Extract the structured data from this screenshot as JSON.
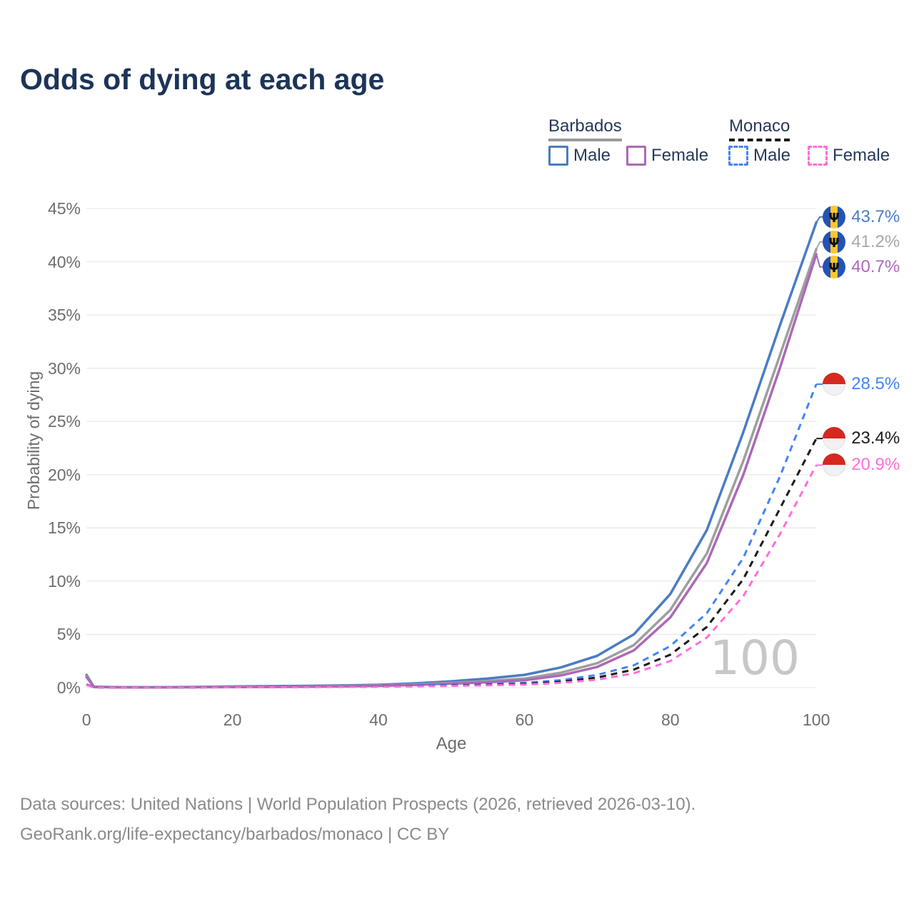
{
  "title": "Odds of dying at each age",
  "watermark_age": "100",
  "legend": {
    "groups": [
      {
        "label": "Barbados",
        "underline_style": "solid",
        "underline_color": "#9a9a9a",
        "items": [
          {
            "label": "Male",
            "color": "#4a7cc2",
            "dash": false
          },
          {
            "label": "Female",
            "color": "#ad68b8",
            "dash": false
          }
        ]
      },
      {
        "label": "Monaco",
        "underline_style": "dashed",
        "underline_color": "#1a1a1a",
        "items": [
          {
            "label": "Male",
            "color": "#4285f4",
            "dash": true
          },
          {
            "label": "Female",
            "color": "#ff6edb",
            "dash": true
          }
        ]
      }
    ]
  },
  "axes": {
    "y_title": "Probability of dying",
    "x_title": "Age",
    "y_ticks": [
      {
        "label": "45%",
        "value": 45
      },
      {
        "label": "40%",
        "value": 40
      },
      {
        "label": "35%",
        "value": 35
      },
      {
        "label": "30%",
        "value": 30
      },
      {
        "label": "25%",
        "value": 25
      },
      {
        "label": "20%",
        "value": 20
      },
      {
        "label": "15%",
        "value": 15
      },
      {
        "label": "10%",
        "value": 10
      },
      {
        "label": "5%",
        "value": 5
      },
      {
        "label": "0%",
        "value": 0
      }
    ],
    "x_ticks": [
      {
        "label": "0",
        "value": 0
      },
      {
        "label": "20",
        "value": 20
      },
      {
        "label": "40",
        "value": 40
      },
      {
        "label": "60",
        "value": 60
      },
      {
        "label": "80",
        "value": 80
      },
      {
        "label": "100",
        "value": 100
      }
    ]
  },
  "end_labels": [
    {
      "country": "Barbados",
      "series": "Male",
      "flag": "barbados",
      "label": "43.7%",
      "value": 43.7,
      "color": "#4a7cc2"
    },
    {
      "country": "Barbados",
      "series": "Both sexes",
      "flag": "barbados",
      "label": "41.2%",
      "value": 41.2,
      "color": "#a8a8a8"
    },
    {
      "country": "Barbados",
      "series": "Female",
      "flag": "barbados",
      "label": "40.7%",
      "value": 40.7,
      "color": "#ad68b8"
    },
    {
      "country": "Monaco",
      "series": "Male",
      "flag": "monaco",
      "label": "28.5%",
      "value": 28.5,
      "color": "#4285f4"
    },
    {
      "country": "Monaco",
      "series": "Both sexes",
      "flag": "monaco",
      "label": "23.4%",
      "value": 23.4,
      "color": "#1a1a1a"
    },
    {
      "country": "Monaco",
      "series": "Female",
      "flag": "monaco",
      "label": "20.9%",
      "value": 20.9,
      "color": "#ff6edb"
    }
  ],
  "footer": {
    "line1": "Data sources: United Nations | World Population Prospects (2026, retrieved 2026-03-10).",
    "line2": "GeoRank.org/life-expectancy/barbados/monaco | CC BY"
  },
  "chart_data": {
    "type": "line",
    "title": "Odds of dying at each age",
    "xlabel": "Age",
    "ylabel": "Probability of dying",
    "xlim": [
      0,
      100
    ],
    "ylim": [
      0,
      45
    ],
    "grid": true,
    "legend_position": "top-right",
    "x": [
      0,
      1,
      5,
      10,
      15,
      20,
      25,
      30,
      35,
      40,
      45,
      50,
      55,
      60,
      65,
      70,
      75,
      80,
      85,
      90,
      95,
      100
    ],
    "series": [
      {
        "name": "Barbados Male",
        "color": "#4a7cc2",
        "dash": false,
        "values": [
          1.2,
          0.08,
          0.04,
          0.04,
          0.07,
          0.11,
          0.14,
          0.17,
          0.21,
          0.27,
          0.4,
          0.6,
          0.85,
          1.2,
          1.9,
          3.0,
          5.0,
          8.8,
          14.8,
          24.0,
          34.0,
          43.7
        ]
      },
      {
        "name": "Barbados (both sexes)",
        "color": "#9e9e9e",
        "dash": false,
        "values": [
          1.1,
          0.07,
          0.03,
          0.03,
          0.05,
          0.08,
          0.1,
          0.12,
          0.16,
          0.21,
          0.3,
          0.45,
          0.62,
          0.85,
          1.4,
          2.3,
          4.0,
          7.3,
          12.6,
          21.3,
          31.2,
          41.2
        ]
      },
      {
        "name": "Barbados Female",
        "color": "#ad68b8",
        "dash": false,
        "values": [
          1.0,
          0.06,
          0.03,
          0.03,
          0.04,
          0.05,
          0.07,
          0.09,
          0.12,
          0.17,
          0.25,
          0.38,
          0.5,
          0.7,
          1.15,
          1.95,
          3.5,
          6.6,
          11.7,
          20.0,
          30.0,
          40.7
        ]
      },
      {
        "name": "Monaco Male",
        "color": "#4285f4",
        "dash": true,
        "values": [
          0.3,
          0.03,
          0.01,
          0.01,
          0.03,
          0.05,
          0.06,
          0.07,
          0.09,
          0.12,
          0.18,
          0.25,
          0.33,
          0.45,
          0.7,
          1.2,
          2.1,
          3.9,
          7.0,
          12.2,
          19.8,
          28.5
        ]
      },
      {
        "name": "Monaco (both sexes)",
        "color": "#1a1a1a",
        "dash": true,
        "values": [
          0.28,
          0.025,
          0.01,
          0.01,
          0.02,
          0.04,
          0.05,
          0.06,
          0.07,
          0.1,
          0.15,
          0.2,
          0.27,
          0.35,
          0.55,
          0.95,
          1.7,
          3.1,
          5.7,
          10.2,
          16.8,
          23.4
        ]
      },
      {
        "name": "Monaco Female",
        "color": "#ff6edb",
        "dash": true,
        "values": [
          0.25,
          0.02,
          0.01,
          0.01,
          0.02,
          0.03,
          0.04,
          0.05,
          0.06,
          0.08,
          0.12,
          0.17,
          0.22,
          0.28,
          0.45,
          0.75,
          1.35,
          2.5,
          4.7,
          8.6,
          14.4,
          20.9
        ]
      }
    ]
  }
}
